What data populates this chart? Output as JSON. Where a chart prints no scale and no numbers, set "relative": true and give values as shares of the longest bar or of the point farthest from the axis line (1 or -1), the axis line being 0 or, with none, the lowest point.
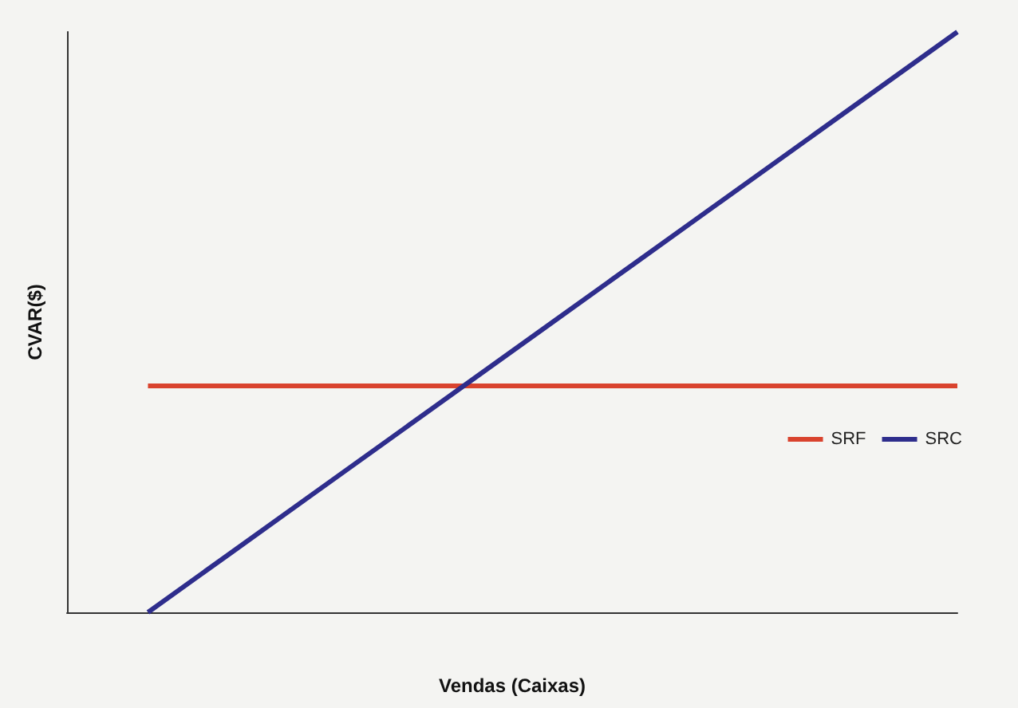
{
  "chart_data": {
    "type": "line",
    "xlabel": "Vendas (Caixas)",
    "ylabel": "CVAR($)",
    "relative": true,
    "legend": "right",
    "marker": "none",
    "grid": false,
    "categories": [
      null,
      null,
      null,
      null,
      null,
      null,
      null,
      null,
      null,
      null,
      null,
      null
    ],
    "series": [
      {
        "name": "SRF",
        "color": "#d9432e",
        "values": [
          null,
          0.39,
          0.39,
          0.39,
          0.39,
          0.39,
          0.39,
          0.39,
          0.39,
          0.39,
          0.39,
          0.39
        ]
      },
      {
        "name": "SRC",
        "color": "#2e2d8c",
        "values": [
          null,
          0,
          0.1,
          0.2,
          0.3,
          0.4,
          0.5,
          0.6,
          0.7,
          0.8,
          0.9,
          1
        ]
      }
    ]
  }
}
